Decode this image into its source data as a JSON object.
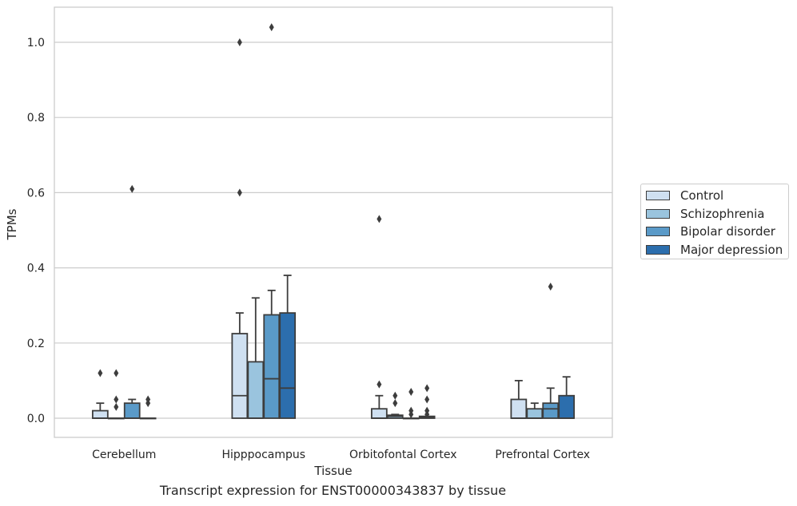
{
  "chart_data": {
    "type": "box",
    "title": "",
    "caption": "Transcript expression for ENST00000343837 by tissue",
    "xlabel": "Tissue",
    "ylabel": "TPMs",
    "ylim": [
      -0.05,
      1.09
    ],
    "yticks": [
      "0.0",
      "0.2",
      "0.4",
      "0.6",
      "0.8",
      "1.0"
    ],
    "grid": true,
    "legend_position": "right",
    "categories": [
      "Cerebellum",
      "Hipppocampus",
      "Orbitofontal Cortex",
      "Prefrontal Cortex"
    ],
    "series": [
      {
        "name": "Control",
        "color": "#cfe0f1",
        "boxes": [
          {
            "min": 0.0,
            "q1": 0.0,
            "median": 0.0,
            "q3": 0.02,
            "max": 0.04,
            "outliers": [
              0.12
            ]
          },
          {
            "min": 0.0,
            "q1": 0.0,
            "median": 0.06,
            "q3": 0.225,
            "max": 0.28,
            "outliers": [
              0.6,
              1.0
            ]
          },
          {
            "min": 0.0,
            "q1": 0.0,
            "median": 0.0,
            "q3": 0.025,
            "max": 0.06,
            "outliers": [
              0.09,
              0.53
            ]
          },
          {
            "min": 0.0,
            "q1": 0.0,
            "median": 0.0,
            "q3": 0.05,
            "max": 0.1,
            "outliers": []
          }
        ]
      },
      {
        "name": "Schizophrenia",
        "color": "#9ac4de",
        "boxes": [
          {
            "min": 0.0,
            "q1": 0.0,
            "median": 0.0,
            "q3": 0.0,
            "max": 0.0,
            "outliers": [
              0.03,
              0.05,
              0.12
            ]
          },
          {
            "min": 0.0,
            "q1": 0.0,
            "median": 0.0,
            "q3": 0.15,
            "max": 0.32,
            "outliers": []
          },
          {
            "min": 0.0,
            "q1": 0.0,
            "median": 0.005,
            "q3": 0.008,
            "max": 0.01,
            "outliers": [
              0.04,
              0.06
            ]
          },
          {
            "min": 0.0,
            "q1": 0.0,
            "median": 0.0,
            "q3": 0.025,
            "max": 0.04,
            "outliers": []
          }
        ]
      },
      {
        "name": "Bipolar disorder",
        "color": "#5a9ac8",
        "boxes": [
          {
            "min": 0.0,
            "q1": 0.0,
            "median": 0.0,
            "q3": 0.04,
            "max": 0.05,
            "outliers": [
              0.61
            ]
          },
          {
            "min": 0.0,
            "q1": 0.0,
            "median": 0.105,
            "q3": 0.275,
            "max": 0.34,
            "outliers": [
              1.04
            ]
          },
          {
            "min": 0.0,
            "q1": 0.0,
            "median": 0.0,
            "q3": 0.0,
            "max": 0.0,
            "outliers": [
              0.01,
              0.02,
              0.07
            ]
          },
          {
            "min": 0.0,
            "q1": 0.0,
            "median": 0.025,
            "q3": 0.04,
            "max": 0.08,
            "outliers": [
              0.35
            ]
          }
        ]
      },
      {
        "name": "Major depression",
        "color": "#2c6ead",
        "boxes": [
          {
            "min": 0.0,
            "q1": 0.0,
            "median": 0.0,
            "q3": 0.0,
            "max": 0.0,
            "outliers": [
              0.04,
              0.05
            ]
          },
          {
            "min": 0.0,
            "q1": 0.0,
            "median": 0.08,
            "q3": 0.28,
            "max": 0.38,
            "outliers": []
          },
          {
            "min": 0.0,
            "q1": 0.0,
            "median": 0.002,
            "q3": 0.005,
            "max": 0.005,
            "outliers": [
              0.01,
              0.02,
              0.05,
              0.08
            ]
          },
          {
            "min": 0.0,
            "q1": 0.0,
            "median": 0.0,
            "q3": 0.06,
            "max": 0.11,
            "outliers": []
          }
        ]
      }
    ]
  }
}
